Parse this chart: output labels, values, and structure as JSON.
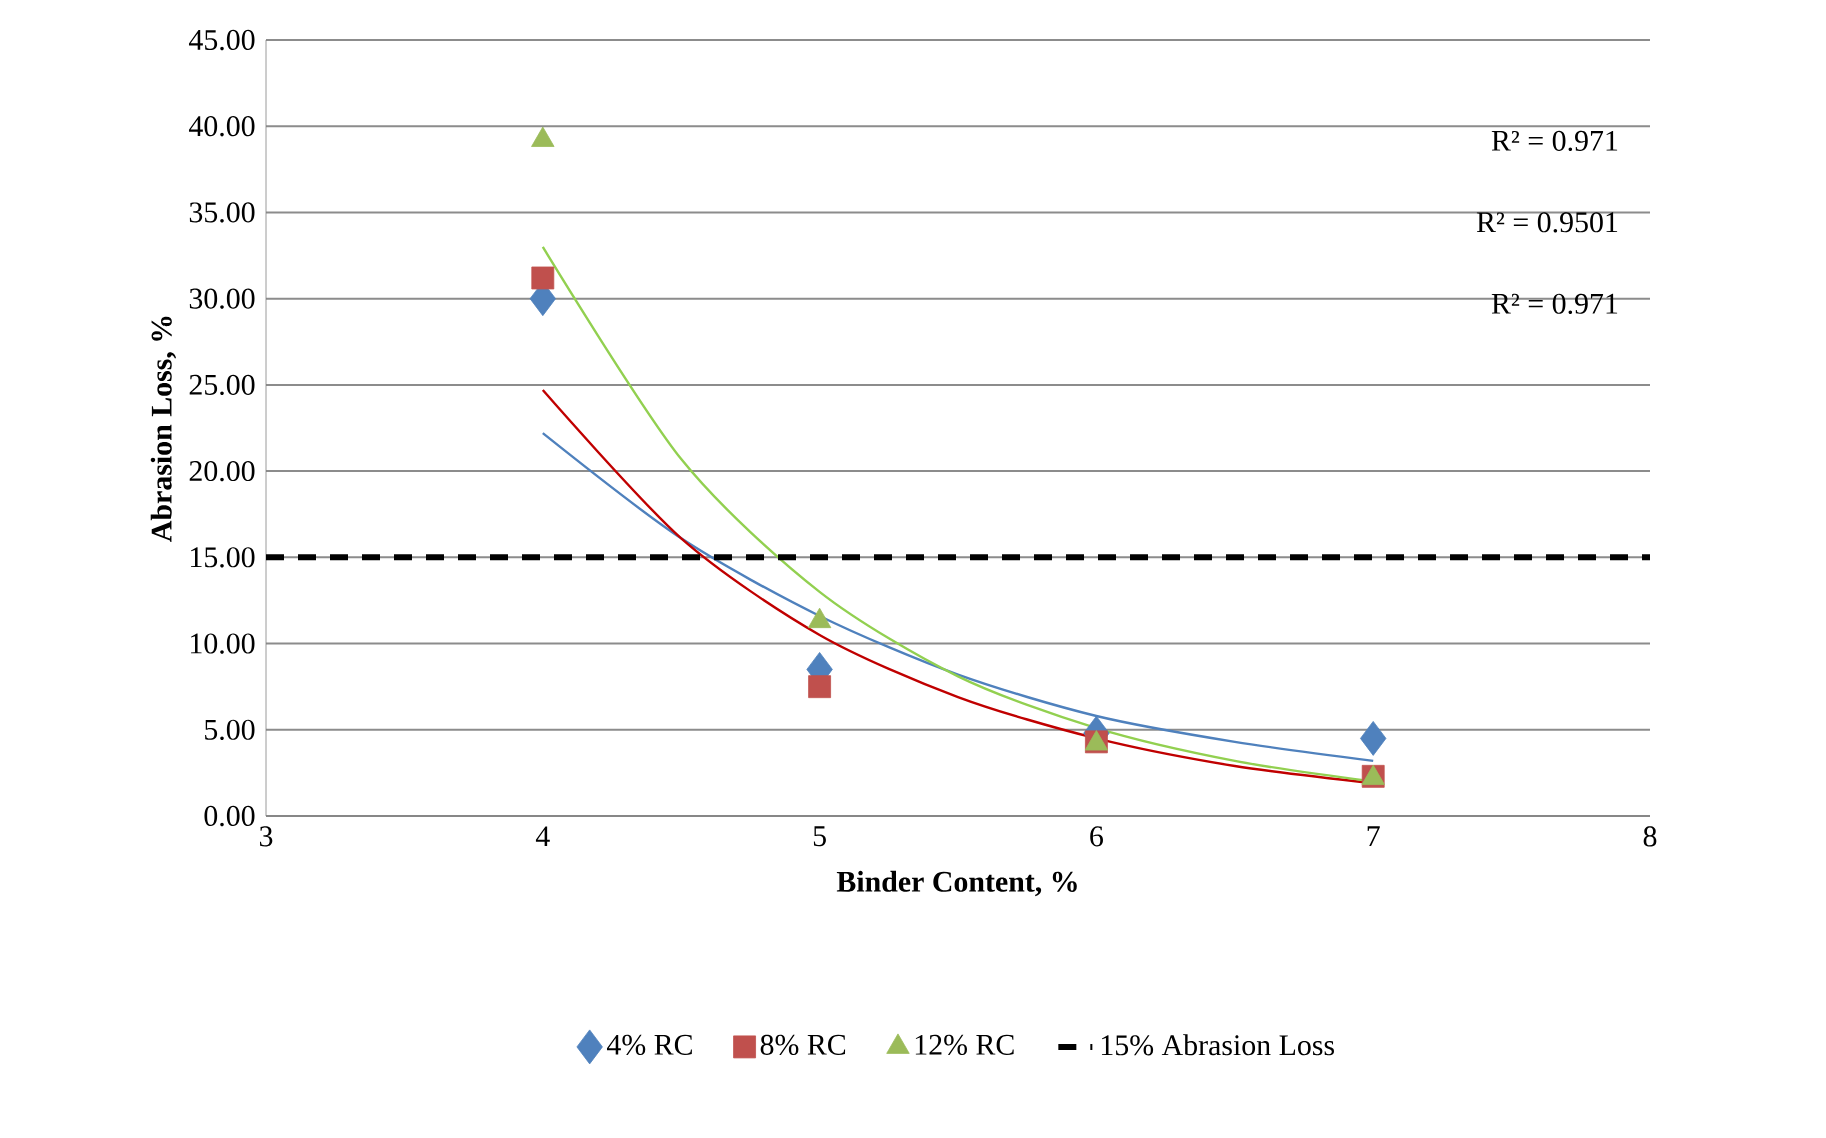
{
  "chart_data": {
    "type": "scatter",
    "xlabel": "Binder Content, %",
    "ylabel": "Abrasion Loss, %",
    "xlim": [
      3,
      8
    ],
    "xticks": [
      3,
      4,
      5,
      6,
      7,
      8
    ],
    "ylim": [
      0,
      45
    ],
    "yticks": [
      {
        "value": 0,
        "label": "0.00"
      },
      {
        "value": 5,
        "label": "5.00"
      },
      {
        "value": 10,
        "label": "10.00"
      },
      {
        "value": 15,
        "label": "15.00"
      },
      {
        "value": 20,
        "label": "20.00"
      },
      {
        "value": 25,
        "label": "25.00"
      },
      {
        "value": 30,
        "label": "30.00"
      },
      {
        "value": 35,
        "label": "35.00"
      },
      {
        "value": 40,
        "label": "40.00"
      },
      {
        "value": 45,
        "label": "45.00"
      }
    ],
    "grid": "y",
    "legend": "bottom",
    "series": [
      {
        "name": "4% RC",
        "color": "#4f81bd",
        "marker": "diamond",
        "x": [
          4,
          5,
          6,
          7
        ],
        "values": [
          30.0,
          8.5,
          4.8,
          4.5
        ]
      },
      {
        "name": "8% RC",
        "color": "#c0504d",
        "marker": "square",
        "x": [
          4,
          5,
          6,
          7
        ],
        "values": [
          31.2,
          7.5,
          4.3,
          2.3
        ]
      },
      {
        "name": "12% RC",
        "color": "#9bbb59",
        "marker": "triangle",
        "x": [
          4,
          5,
          6,
          7
        ],
        "values": [
          39.2,
          11.3,
          4.2,
          2.2
        ]
      },
      {
        "type": "line",
        "color": "#4f81bd",
        "marker": "none",
        "x": [
          4,
          4.5,
          5,
          5.5,
          6,
          6.5,
          7
        ],
        "values": [
          22.2,
          16.1,
          11.6,
          8.2,
          5.8,
          4.3,
          3.2
        ]
      },
      {
        "type": "line",
        "color": "#c00000",
        "marker": "none",
        "x": [
          4,
          4.5,
          5,
          5.5,
          6,
          6.5,
          7
        ],
        "values": [
          24.7,
          16.1,
          10.5,
          6.9,
          4.5,
          2.9,
          1.9
        ]
      },
      {
        "type": "line",
        "color": "#92d050",
        "marker": "none",
        "x": [
          4,
          4.5,
          5,
          5.5,
          6,
          6.5,
          7
        ],
        "values": [
          33.0,
          20.7,
          13.0,
          8.1,
          5.1,
          3.2,
          2.0
        ]
      }
    ],
    "ref_lines": [
      {
        "axis": "y",
        "value": 15,
        "label": "15% Abrasion Loss",
        "color": "#000000",
        "line_style": "dashed"
      }
    ],
    "annotations": [
      "R² = 0.971",
      "R² = 0.9501",
      "R² = 0.971"
    ]
  }
}
